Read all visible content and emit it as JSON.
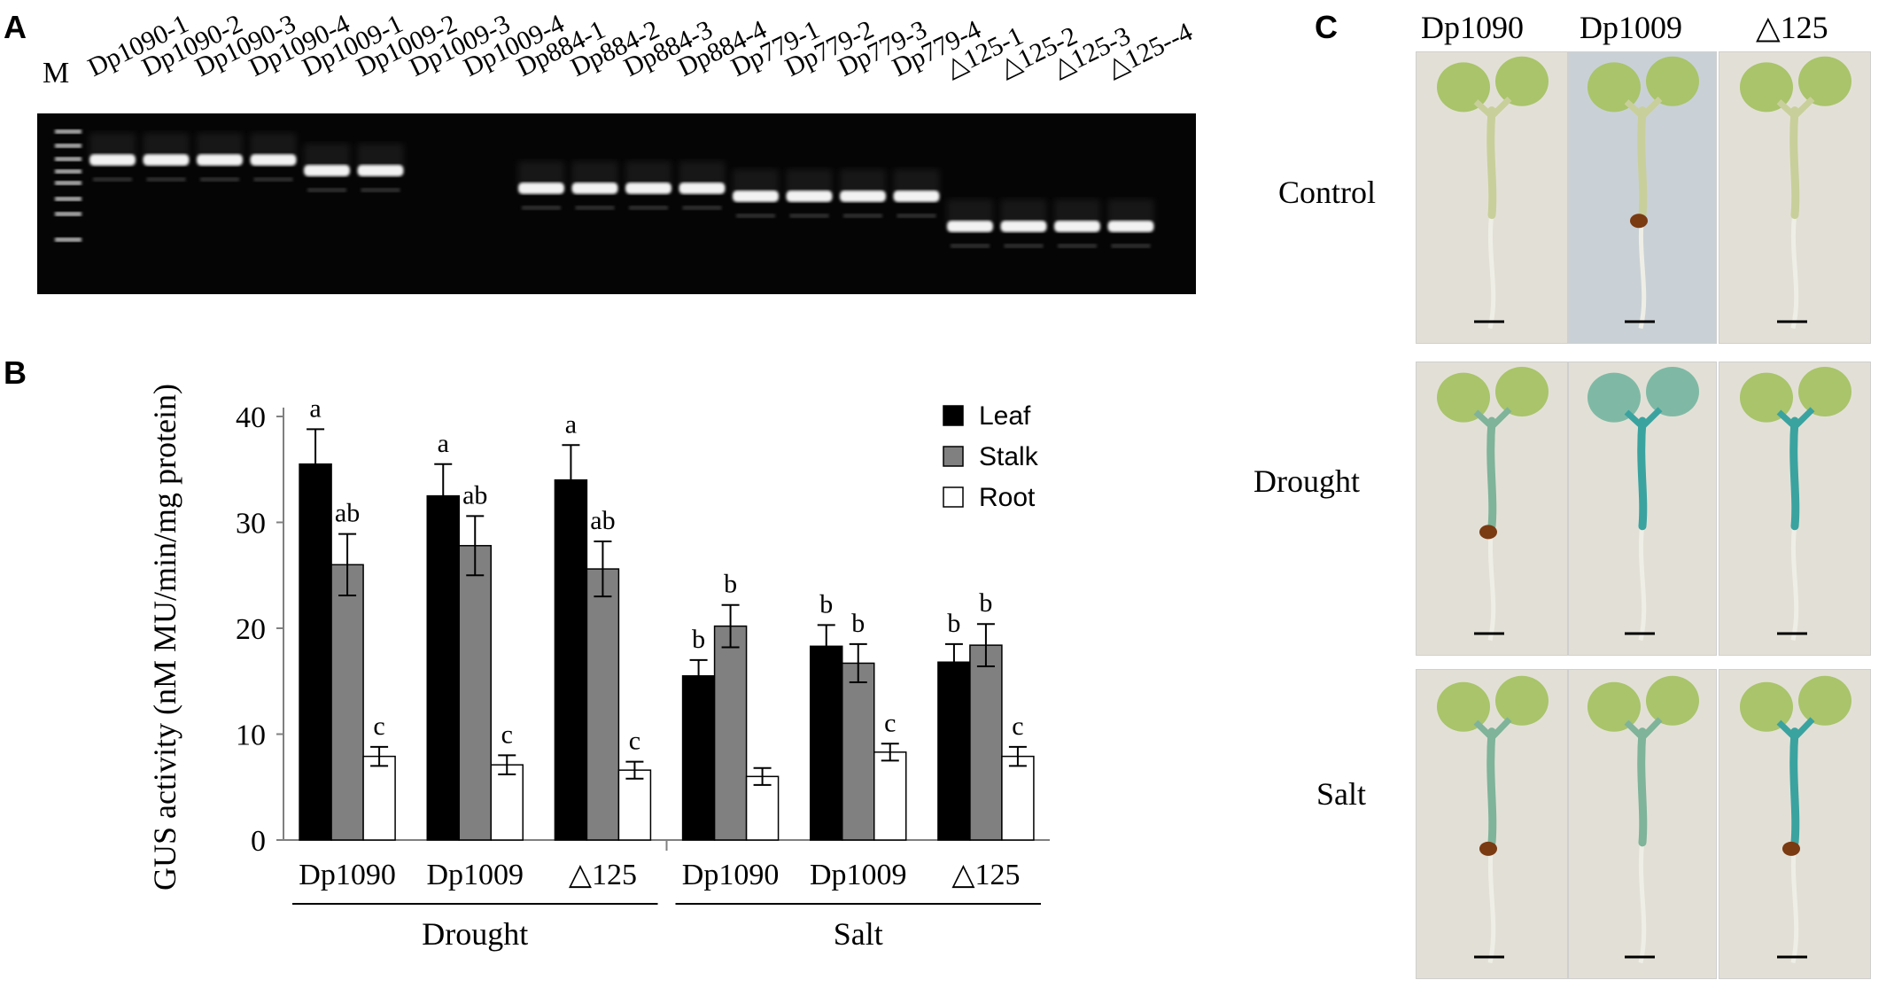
{
  "panels": {
    "a": "A",
    "b": "B",
    "c": "C"
  },
  "gel": {
    "marker_label": "M",
    "lanes": [
      "Dp1090-1",
      "Dp1090-2",
      "Dp1090-3",
      "Dp1090-4",
      "Dp1009-1",
      "Dp1009-2",
      "Dp1009-3",
      "Dp1009-4",
      "Dp884-1",
      "Dp884-2",
      "Dp884-3",
      "Dp884-4",
      "Dp779-1",
      "Dp779-2",
      "Dp779-3",
      "Dp779-4",
      "△125-1",
      "△125-2",
      "△125-3",
      "△125--4"
    ]
  },
  "chart_data": {
    "type": "bar",
    "ylabel": "GUS activity (nM MU/min/mg protein)",
    "ylim": [
      0,
      40
    ],
    "yticks": [
      "0",
      "10",
      "20",
      "30",
      "40"
    ],
    "categories": [
      "Dp1090",
      "Dp1009",
      "△125",
      "Dp1090",
      "Dp1009",
      "△125"
    ],
    "groups": [
      "Drought",
      "Salt"
    ],
    "legend_position": "top-right",
    "series": [
      {
        "name": "Leaf",
        "color": "#000000",
        "values": [
          35.5,
          32.5,
          34.0,
          15.5,
          18.3,
          16.8
        ],
        "errors": [
          3.3,
          3.0,
          3.3,
          1.5,
          2.0,
          1.7
        ],
        "labels": [
          "a",
          "a",
          "a",
          "b",
          "b",
          "b"
        ]
      },
      {
        "name": "Stalk",
        "color": "#808080",
        "values": [
          26.0,
          27.8,
          25.6,
          20.2,
          16.7,
          18.4
        ],
        "errors": [
          2.9,
          2.8,
          2.6,
          2.0,
          1.8,
          2.0
        ],
        "labels": [
          "ab",
          "ab",
          "ab",
          "b",
          "b",
          "b"
        ]
      },
      {
        "name": "Root",
        "color": "#ffffff",
        "values": [
          7.9,
          7.1,
          6.6,
          6.0,
          8.3,
          7.9
        ],
        "errors": [
          0.9,
          0.9,
          0.8,
          0.8,
          0.8,
          0.9
        ],
        "labels": [
          "c",
          "c",
          "c",
          "",
          "c",
          "c"
        ]
      }
    ]
  },
  "photos": {
    "columns": [
      "Dp1090",
      "Dp1009",
      "△125"
    ],
    "rows": [
      "Control",
      "Drought",
      "Salt"
    ]
  }
}
